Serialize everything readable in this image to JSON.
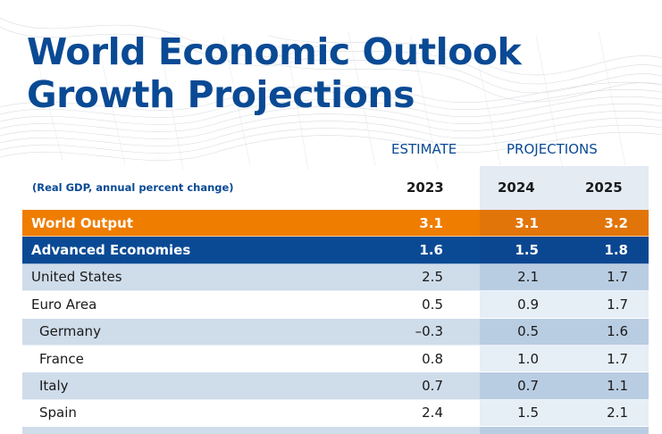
{
  "title": {
    "line1": "World Economic Outlook",
    "line2": "Growth Projections"
  },
  "header": {
    "estimate_label": "ESTIMATE",
    "projections_label": "PROJECTIONS",
    "subtitle": "(Real GDP, annual percent change)",
    "years": [
      "2023",
      "2024",
      "2025"
    ]
  },
  "rows": [
    {
      "name": "World Output",
      "values": [
        "3.1",
        "3.1",
        "3.2"
      ]
    },
    {
      "name": "Advanced Economies",
      "values": [
        "1.6",
        "1.5",
        "1.8"
      ]
    },
    {
      "name": "United States",
      "values": [
        "2.5",
        "2.1",
        "1.7"
      ]
    },
    {
      "name": "Euro Area",
      "values": [
        "0.5",
        "0.9",
        "1.7"
      ]
    },
    {
      "name": "Germany",
      "values": [
        "–0.3",
        "0.5",
        "1.6"
      ]
    },
    {
      "name": "France",
      "values": [
        "0.8",
        "1.0",
        "1.7"
      ]
    },
    {
      "name": "Italy",
      "values": [
        "0.7",
        "0.7",
        "1.1"
      ]
    },
    {
      "name": "Spain",
      "values": [
        "2.4",
        "1.5",
        "2.1"
      ]
    }
  ],
  "colors": {
    "brand_blue": "#0a4a94",
    "world_orange": "#ef7d00",
    "row_shade": "#cfdcea"
  }
}
